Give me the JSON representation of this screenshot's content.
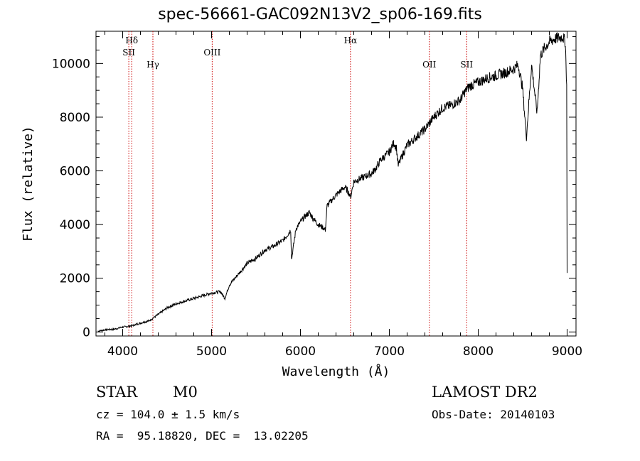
{
  "chart_data": {
    "type": "line",
    "title": "spec-56661-GAC092N13V2_sp06-169.fits",
    "xlabel": "Wavelength (Å)",
    "ylabel": "Flux (relative)",
    "xlim": [
      3700,
      9100
    ],
    "ylim": [
      -150,
      11200
    ],
    "x_ticks": [
      4000,
      5000,
      6000,
      7000,
      8000,
      9000
    ],
    "x_tick_labels": [
      "4000",
      "5000",
      "6000",
      "7000",
      "8000",
      "9000"
    ],
    "y_ticks": [
      0,
      2000,
      4000,
      6000,
      8000,
      10000
    ],
    "y_tick_labels": [
      "0",
      "2000",
      "4000",
      "6000",
      "8000",
      "10000"
    ],
    "grid": false,
    "series": [
      {
        "x": [
          3720,
          3800,
          3900,
          4000,
          4100,
          4200,
          4300,
          4400,
          4500,
          4600,
          4700,
          4800,
          4900,
          5000,
          5100,
          5150,
          5200,
          5300,
          5400,
          5500,
          5600,
          5700,
          5800,
          5850,
          5890,
          5900,
          5950,
          6000,
          6050,
          6100,
          6150,
          6200,
          6250,
          6280,
          6300,
          6400,
          6500,
          6550,
          6563,
          6600,
          6700,
          6800,
          6850,
          6900,
          7000,
          7050,
          7080,
          7100,
          7150,
          7200,
          7300,
          7400,
          7500,
          7600,
          7700,
          7800,
          7850,
          7900,
          8000,
          8100,
          8200,
          8300,
          8400,
          8450,
          8498,
          8542,
          8600,
          8662,
          8700,
          8750,
          8800,
          8850,
          8900,
          8950,
          8980,
          8995,
          9000
        ],
        "y": [
          30,
          80,
          100,
          180,
          230,
          330,
          420,
          650,
          900,
          1050,
          1150,
          1250,
          1350,
          1450,
          1500,
          1250,
          1750,
          2150,
          2550,
          2750,
          3050,
          3200,
          3400,
          3600,
          3800,
          2700,
          3850,
          4100,
          4300,
          4450,
          4200,
          4000,
          3900,
          3800,
          4700,
          5100,
          5400,
          5150,
          5000,
          5600,
          5750,
          5900,
          6100,
          6400,
          6700,
          7050,
          6850,
          6200,
          6600,
          6950,
          7250,
          7550,
          8000,
          8350,
          8450,
          8650,
          8950,
          9150,
          9300,
          9450,
          9550,
          9650,
          9800,
          9950,
          9100,
          7250,
          9950,
          8150,
          10300,
          10600,
          10800,
          10900,
          10950,
          11000,
          10800,
          9200,
          2200
        ]
      }
    ],
    "lines": [
      {
        "label": "Hδ",
        "x": 4102,
        "row": 1
      },
      {
        "label": "SII",
        "x": 4069,
        "row": 2
      },
      {
        "label": "Hγ",
        "x": 4340,
        "row": 3
      },
      {
        "label": "OIII",
        "x": 5007,
        "row": 2
      },
      {
        "label": "Hα",
        "x": 6563,
        "row": 1
      },
      {
        "label": "OII",
        "x": 7450,
        "row": 3
      },
      {
        "label": "SII",
        "x": 7870,
        "row": 3
      }
    ],
    "line_color": "#cc0000"
  },
  "info": {
    "class": "STAR",
    "subclass": "M0",
    "survey": "LAMOST DR2",
    "cz": "cz = 104.0 ± 1.5 km/s",
    "obs_date": "Obs-Date: 20140103",
    "coords": "RA =  95.18820, DEC =  13.02205"
  }
}
